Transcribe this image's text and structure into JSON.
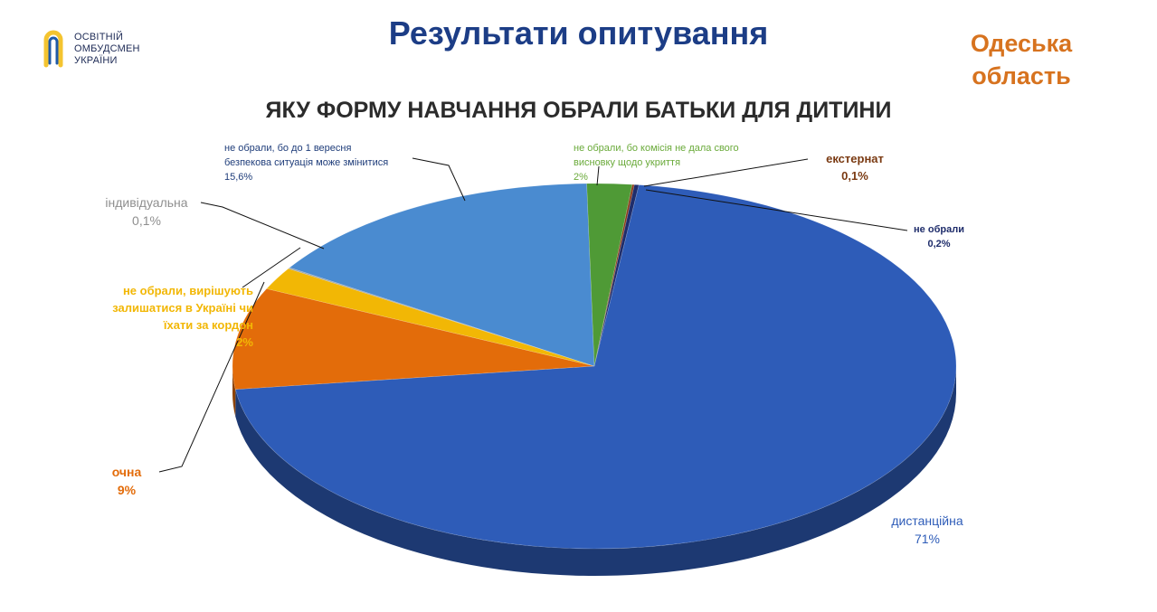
{
  "header": {
    "logo_lines": [
      "ОСВІТНІЙ",
      "ОМБУДСМЕН",
      "УКРАЇНИ"
    ],
    "title": "Результати опитування",
    "region_lines": [
      "Одеська",
      "область"
    ]
  },
  "colors": {
    "title": "#1c3d86",
    "region": "#d7731f",
    "logo_yellow": "#f4c430",
    "logo_blue": "#1f5aa8"
  },
  "chart_data": {
    "type": "pie",
    "title": "ЯКУ ФОРМУ НАВЧАННЯ ОБРАЛИ БАТЬКИ ДЛЯ ДИТИНИ",
    "style": "3d",
    "slices": [
      {
        "label_lines": [
          "екстернат"
        ],
        "value_label": "0,1%",
        "value": 0.1,
        "color": "#8b3a1a",
        "label_color": "#7a3a12"
      },
      {
        "label_lines": [
          "не обрали"
        ],
        "value_label": "0,2%",
        "value": 0.2,
        "color": "#1f2d6b",
        "label_color": "#1f2d6b"
      },
      {
        "label_lines": [
          "дистанційна"
        ],
        "value_label": "71%",
        "value": 71,
        "color": "#2e5cb8",
        "label_color": "#2e5cb8"
      },
      {
        "label_lines": [
          "очна"
        ],
        "value_label": "9%",
        "value": 9,
        "color": "#e36c0a",
        "label_color": "#e36c0a"
      },
      {
        "label_lines": [
          "не обрали, вирішують",
          "залишатися в Україні чи",
          "їхати за кордон"
        ],
        "value_label": "2%",
        "value": 2,
        "color": "#f2b705",
        "label_color": "#f2b705"
      },
      {
        "label_lines": [
          "індивідуальна"
        ],
        "value_label": "0,1%",
        "value": 0.1,
        "color": "#9aa3a8",
        "label_color": "#8f8f8f"
      },
      {
        "label_lines": [
          "не обрали, бо до 1 вересня",
          "безпекова ситуація може змінитися"
        ],
        "value_label": "15,6%",
        "value": 15.6,
        "color": "#4a8bd0",
        "label_color": "#1f3d7a"
      },
      {
        "label_lines": [
          "не обрали, бо комісія не дала свого",
          "висновку щодо укриття"
        ],
        "value_label": "2%",
        "value": 2,
        "color": "#4f9a36",
        "label_color": "#6aaa3a"
      }
    ]
  }
}
